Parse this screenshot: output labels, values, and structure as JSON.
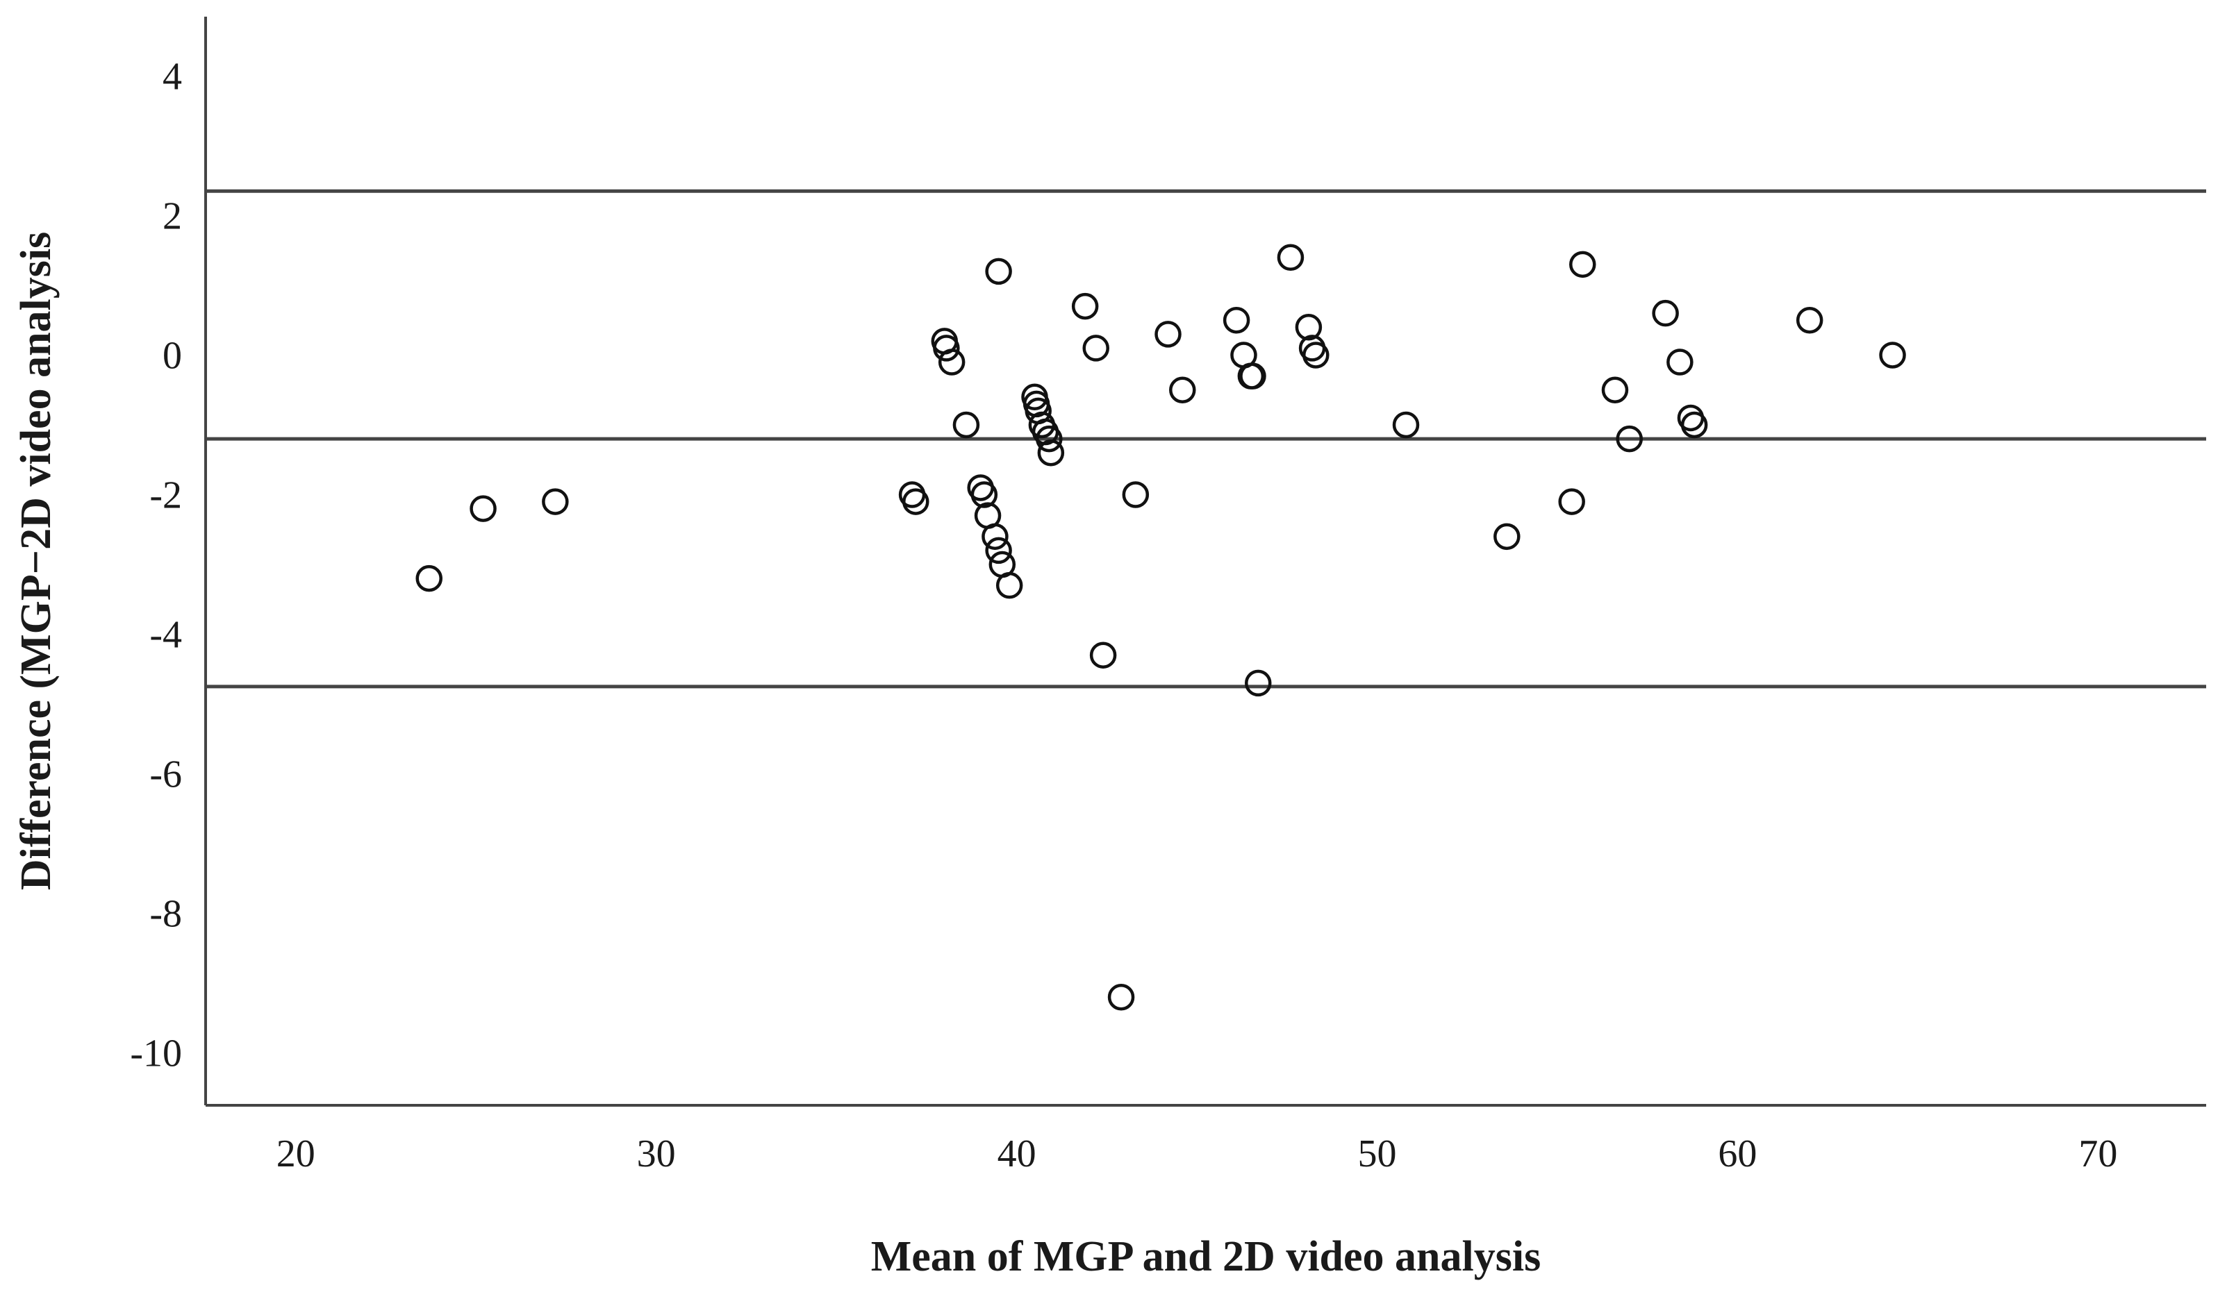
{
  "chart_data": {
    "type": "scatter",
    "xlabel": "Mean of MGP and 2D video analysis",
    "ylabel": "Difference (MGP−2D video analysis",
    "xlim": [
      17.5,
      73
    ],
    "ylim": [
      -10.75,
      4.85
    ],
    "x_ticks": [
      20,
      30,
      40,
      50,
      60,
      70
    ],
    "y_ticks": [
      4,
      2,
      0,
      -2,
      -4,
      -6,
      -8,
      -10
    ],
    "reference_lines": [
      2.35,
      -1.2,
      -4.75
    ],
    "grid": false,
    "points": [
      {
        "x": 23.7,
        "y": -3.2
      },
      {
        "x": 25.2,
        "y": -2.2
      },
      {
        "x": 27.2,
        "y": -2.1
      },
      {
        "x": 37.1,
        "y": -2.0
      },
      {
        "x": 37.2,
        "y": -2.1
      },
      {
        "x": 38.0,
        "y": 0.2
      },
      {
        "x": 38.05,
        "y": 0.1
      },
      {
        "x": 38.2,
        "y": -0.1
      },
      {
        "x": 38.6,
        "y": -1.0
      },
      {
        "x": 39.0,
        "y": -1.9
      },
      {
        "x": 39.1,
        "y": -2.0
      },
      {
        "x": 39.2,
        "y": -2.3
      },
      {
        "x": 39.4,
        "y": -2.6
      },
      {
        "x": 39.5,
        "y": 1.2
      },
      {
        "x": 39.5,
        "y": -2.8
      },
      {
        "x": 39.6,
        "y": -3.0
      },
      {
        "x": 39.8,
        "y": -3.3
      },
      {
        "x": 40.5,
        "y": -0.6
      },
      {
        "x": 40.55,
        "y": -0.7
      },
      {
        "x": 40.6,
        "y": -0.8
      },
      {
        "x": 40.7,
        "y": -1.0
      },
      {
        "x": 40.8,
        "y": -1.1
      },
      {
        "x": 40.9,
        "y": -1.2
      },
      {
        "x": 40.95,
        "y": -1.4
      },
      {
        "x": 41.9,
        "y": 0.7
      },
      {
        "x": 42.2,
        "y": 0.1
      },
      {
        "x": 42.4,
        "y": -4.3
      },
      {
        "x": 42.9,
        "y": -9.2
      },
      {
        "x": 43.3,
        "y": -2.0
      },
      {
        "x": 44.2,
        "y": 0.3
      },
      {
        "x": 44.6,
        "y": -0.5
      },
      {
        "x": 46.1,
        "y": 0.5
      },
      {
        "x": 46.3,
        "y": 0.0
      },
      {
        "x": 46.5,
        "y": -0.3
      },
      {
        "x": 46.55,
        "y": -0.3
      },
      {
        "x": 46.7,
        "y": -4.7
      },
      {
        "x": 47.6,
        "y": 1.4
      },
      {
        "x": 48.1,
        "y": 0.4
      },
      {
        "x": 48.2,
        "y": 0.1
      },
      {
        "x": 48.3,
        "y": 0.0
      },
      {
        "x": 50.8,
        "y": -1.0
      },
      {
        "x": 53.6,
        "y": -2.6
      },
      {
        "x": 55.4,
        "y": -2.1
      },
      {
        "x": 55.7,
        "y": 1.3
      },
      {
        "x": 56.6,
        "y": -0.5
      },
      {
        "x": 57.0,
        "y": -1.2
      },
      {
        "x": 58.0,
        "y": 0.6
      },
      {
        "x": 58.4,
        "y": -0.1
      },
      {
        "x": 58.7,
        "y": -0.9
      },
      {
        "x": 58.8,
        "y": -1.0
      },
      {
        "x": 62.0,
        "y": 0.5
      },
      {
        "x": 64.3,
        "y": 0.0
      }
    ]
  }
}
